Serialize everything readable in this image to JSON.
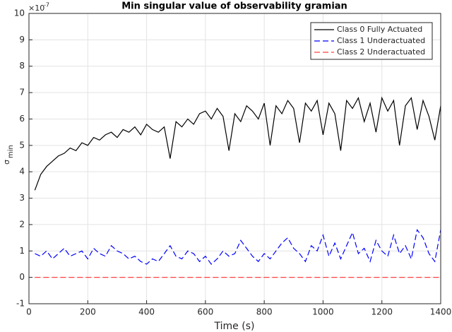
{
  "chart_data": {
    "type": "line",
    "title": "Min singular value of observability gramian",
    "x_label": "Time (s)",
    "y_label": "σ",
    "y_label_sub": "min",
    "y_exponent_base": "×10",
    "y_exponent": "-7",
    "x": [
      20,
      40,
      60,
      80,
      100,
      120,
      140,
      160,
      180,
      200,
      220,
      240,
      260,
      280,
      300,
      320,
      340,
      360,
      380,
      400,
      420,
      440,
      460,
      480,
      500,
      520,
      540,
      560,
      580,
      600,
      620,
      640,
      660,
      680,
      700,
      720,
      740,
      760,
      780,
      800,
      820,
      840,
      860,
      880,
      900,
      920,
      940,
      960,
      980,
      1000,
      1020,
      1040,
      1060,
      1080,
      1100,
      1120,
      1140,
      1160,
      1180,
      1200,
      1220,
      1240,
      1260,
      1280,
      1300,
      1320,
      1340,
      1360,
      1380,
      1400
    ],
    "series": [
      {
        "name": "Class 0 Fully Actuated",
        "color": "#000000",
        "linestyle": "solid",
        "values": [
          3.3,
          3.9,
          4.2,
          4.4,
          4.6,
          4.7,
          4.9,
          4.8,
          5.1,
          5.0,
          5.3,
          5.2,
          5.4,
          5.5,
          5.3,
          5.6,
          5.5,
          5.7,
          5.4,
          5.8,
          5.6,
          5.5,
          5.7,
          4.5,
          5.9,
          5.7,
          6.0,
          5.8,
          6.2,
          6.3,
          6.0,
          6.4,
          6.1,
          4.8,
          6.2,
          5.9,
          6.5,
          6.3,
          6.0,
          6.6,
          5.0,
          6.5,
          6.2,
          6.7,
          6.4,
          5.1,
          6.6,
          6.3,
          6.7,
          5.4,
          6.6,
          6.2,
          4.8,
          6.7,
          6.4,
          6.8,
          5.9,
          6.6,
          5.5,
          6.8,
          6.3,
          6.7,
          5.0,
          6.5,
          6.8,
          5.6,
          6.7,
          6.1,
          5.2,
          6.5
        ]
      },
      {
        "name": "Class 1 Underactuated",
        "color": "#0000ff",
        "linestyle": "dashed",
        "values": [
          0.9,
          0.8,
          1.0,
          0.7,
          0.9,
          1.1,
          0.8,
          0.9,
          1.0,
          0.7,
          1.1,
          0.9,
          0.8,
          1.2,
          1.0,
          0.9,
          0.7,
          0.8,
          0.6,
          0.5,
          0.7,
          0.6,
          0.9,
          1.2,
          0.8,
          0.7,
          1.0,
          0.9,
          0.6,
          0.8,
          0.5,
          0.7,
          1.0,
          0.8,
          0.9,
          1.4,
          1.1,
          0.8,
          0.6,
          0.9,
          0.7,
          1.0,
          1.3,
          1.5,
          1.1,
          0.9,
          0.6,
          1.2,
          1.0,
          1.6,
          0.8,
          1.3,
          0.7,
          1.2,
          1.7,
          0.9,
          1.1,
          0.6,
          1.4,
          1.0,
          0.8,
          1.6,
          0.9,
          1.2,
          0.7,
          1.8,
          1.5,
          0.9,
          0.6,
          1.8
        ]
      },
      {
        "name": "Class 2 Underactuated",
        "color": "#ff4040",
        "linestyle": "dashed",
        "values": [
          0,
          0,
          0,
          0,
          0,
          0,
          0,
          0,
          0,
          0,
          0,
          0,
          0,
          0,
          0,
          0,
          0,
          0,
          0,
          0,
          0,
          0,
          0,
          0,
          0,
          0,
          0,
          0,
          0,
          0,
          0,
          0,
          0,
          0,
          0,
          0,
          0,
          0,
          0,
          0,
          0,
          0,
          0,
          0,
          0,
          0,
          0,
          0,
          0,
          0,
          0,
          0,
          0,
          0,
          0,
          0,
          0,
          0,
          0,
          0,
          0,
          0,
          0,
          0,
          0,
          0,
          0,
          0,
          0,
          0
        ]
      }
    ],
    "xlim": [
      0,
      1400
    ],
    "xticks": [
      0,
      200,
      400,
      600,
      800,
      1000,
      1200,
      1400
    ],
    "ylim": [
      -1,
      10
    ],
    "yticks": [
      -1,
      0,
      1,
      2,
      3,
      4,
      5,
      6,
      7,
      8,
      9,
      10
    ],
    "grid": true,
    "legend": "northeast"
  }
}
